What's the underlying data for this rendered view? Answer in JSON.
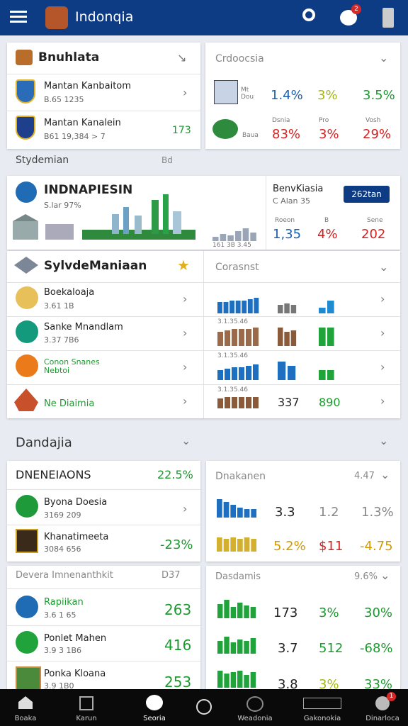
{
  "app_bar": {
    "title": "Indonqia",
    "badge": "2"
  },
  "panel1": {
    "left": {
      "title": "Bnuhlata",
      "rows": [
        {
          "name": "Mantan Kanbaitom",
          "sub": "B.65 1235"
        },
        {
          "name": "Mantan Kanalein",
          "sub": "B61 19,384 > 7",
          "value": "173"
        }
      ]
    },
    "right": {
      "title": "Crdoocsia",
      "rows": [
        {
          "label": "Mt Dou",
          "values": [
            "1.4%",
            "3%",
            "3.5%"
          ]
        },
        {
          "label": "Baua",
          "heads": [
            "Dsnia",
            "Pro",
            "Vosh"
          ],
          "values": [
            "83%",
            "3%",
            "29%"
          ]
        }
      ]
    }
  },
  "section1": {
    "label": "Stydemian",
    "action": "Bd"
  },
  "panel2": {
    "title": "INDNAPIESIN",
    "sub": "S.lar 97%",
    "chart_caption": "161 3B 3.45",
    "right_title": "BenvKiasia",
    "right_sub": "C Alan 35",
    "button": "262tan",
    "heads": [
      "Roeon",
      "B",
      "Sene"
    ],
    "values": [
      "1,35",
      "4%",
      "202"
    ]
  },
  "list": {
    "title": "SylvdeManiaan",
    "right_title": "Corasnst",
    "rows": [
      {
        "name": "Boekaloaja",
        "sub": "3.61 1B"
      },
      {
        "name": "Sanke Mnandlam",
        "sub": "3.37 7B6",
        "caption": "3.1.35.46"
      },
      {
        "name": "Conon Snanes Nebtoi",
        "caption": "3.1.35.46"
      },
      {
        "name": "Ne Diaimia",
        "caption": "3.1.35.46",
        "values": [
          "337",
          "890"
        ]
      }
    ]
  },
  "section2": {
    "label": "Dandajia"
  },
  "panel3": {
    "left": {
      "title": "DNENEIAONS",
      "value": "22.5%",
      "rows": [
        {
          "name": "Byona Doesia",
          "sub": "3169 209"
        },
        {
          "name": "Khanatimeeta",
          "sub": "3084 656",
          "value": "-23%"
        }
      ]
    },
    "right": {
      "title": "Dnakanen",
      "action": "4.47",
      "rows": [
        [
          "3.3",
          "1.2",
          "1.3%"
        ],
        [
          "5.2%",
          "$11",
          "-4.75"
        ]
      ]
    }
  },
  "panel4": {
    "left": {
      "title": "Devera Imnenanthkit",
      "action": "D37",
      "rows": [
        {
          "name": "Rapiikan",
          "sub": "3.6 1 65",
          "value": "263"
        },
        {
          "name": "Ponlet Mahen",
          "sub": "3.9 3 1B6",
          "value": "416"
        },
        {
          "name": "Ponka Kloana",
          "sub": "3.9 1B0",
          "value": "253"
        }
      ]
    },
    "right": {
      "title": "Dasdamis",
      "action": "9.6%",
      "rows": [
        [
          "173",
          "3%",
          "30%"
        ],
        [
          "3.7",
          "512",
          "-68%"
        ],
        [
          "3.8",
          "3%",
          "33%"
        ]
      ]
    }
  },
  "bottom_nav": {
    "items": [
      "Boaka",
      "Karun",
      "Seoria",
      "Weadonia",
      "Gakonokia",
      "Dinarloca"
    ],
    "badge": "1"
  }
}
